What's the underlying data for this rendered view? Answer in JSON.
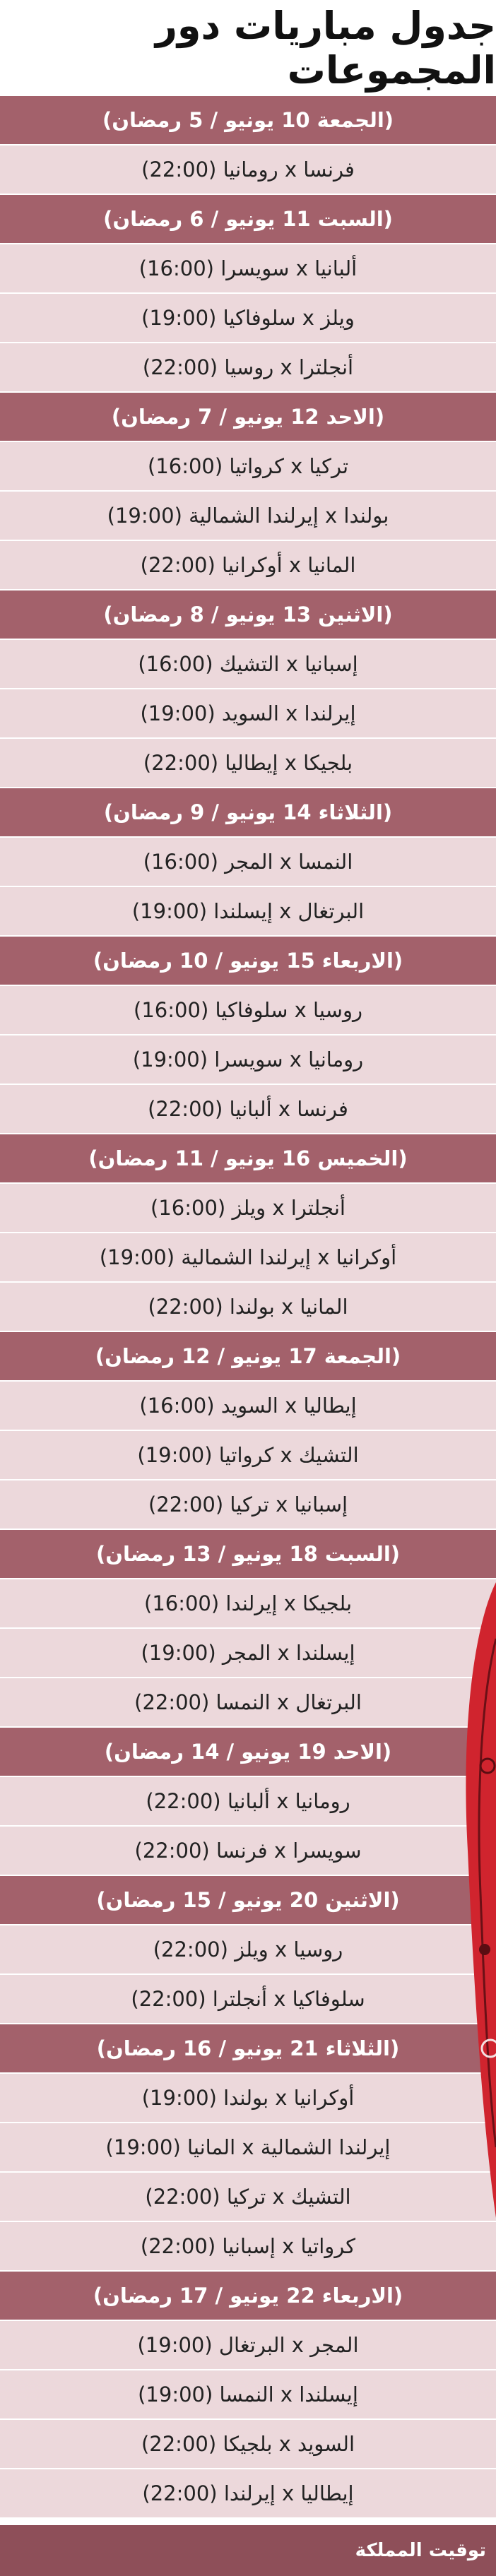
{
  "title": "جدول مباريات دور المجموعات",
  "days": [
    {
      "header": "(الجمعة 10 يونيو / 5 رمضان)",
      "matches": [
        "فرنسا x رومانيا (22:00)"
      ]
    },
    {
      "header": "(السبت 11 يونيو / 6 رمضان)",
      "matches": [
        "ألبانيا x سويسرا (16:00)",
        "ويلز x سلوفاكيا (19:00)",
        "أنجلترا x روسيا (22:00)"
      ]
    },
    {
      "header": "(الاحد 12 يونيو / 7 رمضان)",
      "matches": [
        "تركيا x كرواتيا (16:00)",
        "بولندا x إيرلندا الشمالية (19:00)",
        "المانيا x أوكرانيا (22:00)"
      ]
    },
    {
      "header": "(الاثنين 13 يونيو / 8 رمضان)",
      "matches": [
        "إسبانيا x التشيك (16:00)",
        "إيرلندا x السويد (19:00)",
        "بلجيكا x إيطاليا (22:00)"
      ]
    },
    {
      "header": "(الثلاثاء 14 يونيو / 9 رمضان)",
      "matches": [
        "النمسا x المجر (16:00)",
        "البرتغال x إيسلندا (19:00)"
      ]
    },
    {
      "header": "(الاربعاء 15 يونيو / 10 رمضان)",
      "matches": [
        "روسيا x سلوفاكيا (16:00)",
        "رومانيا x سويسرا (19:00)",
        "فرنسا x ألبانيا (22:00)"
      ]
    },
    {
      "header": "(الخميس 16 يونيو / 11 رمضان)",
      "matches": [
        "أنجلترا x ويلز (16:00)",
        "أوكرانيا x إيرلندا الشمالية (19:00)",
        "المانيا x بولندا (22:00)"
      ]
    },
    {
      "header": "(الجمعة 17 يونيو / 12 رمضان)",
      "matches": [
        "إيطاليا x السويد (16:00)",
        "التشيك x كرواتيا (19:00)",
        "إسبانيا x تركيا (22:00)"
      ]
    },
    {
      "header": "(السبت 18 يونيو / 13 رمضان)",
      "matches": [
        "بلجيكا x إيرلندا (16:00)",
        "إيسلندا x المجر (19:00)",
        "البرتغال x النمسا (22:00)"
      ]
    },
    {
      "header": "(الاحد 19 يونيو / 14 رمضان)",
      "matches": [
        "رومانيا x ألبانيا (22:00)",
        "سويسرا x فرنسا (22:00)"
      ]
    },
    {
      "header": "(الاثنين 20 يونيو / 15 رمضان)",
      "matches": [
        "روسيا x ويلز (22:00)",
        "سلوفاكيا x أنجلترا (22:00)"
      ]
    },
    {
      "header": "(الثلاثاء 21 يونيو / 16 رمضان)",
      "matches": [
        "أوكرانيا x بولندا (19:00)",
        "إيرلندا الشمالية x المانيا (19:00)",
        "التشيك x تركيا (22:00)",
        "كرواتيا x إسبانيا (22:00)"
      ]
    },
    {
      "header": "(الاربعاء 22 يونيو / 17 رمضان)",
      "matches": [
        "المجر x البرتغال (19:00)",
        "إيسلندا x النمسا (19:00)",
        "السويد x بلجيكا (22:00)",
        "إيطاليا x إيرلندا (22:00)"
      ]
    }
  ],
  "footer": "توقيت المملكة"
}
